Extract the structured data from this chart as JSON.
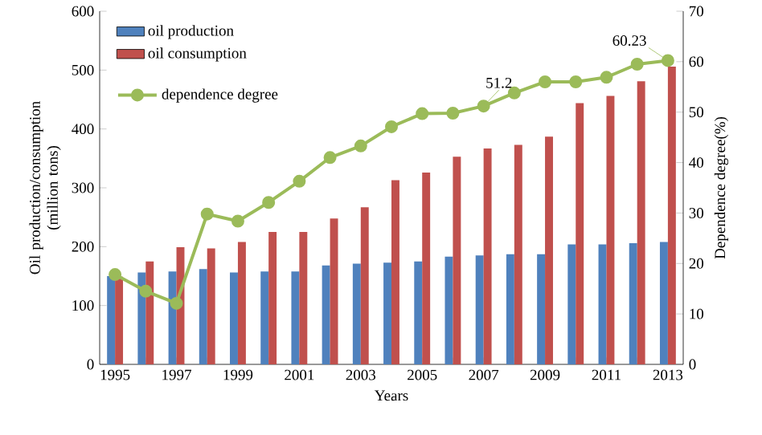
{
  "chart_data": {
    "type": "bar",
    "xlabel": "Years",
    "ylabel": "Oil production/consumption (million tons)",
    "y2label": "Dependence degree(%)",
    "categories": [
      "1995",
      null,
      "1997",
      null,
      "1999",
      null,
      "2001",
      null,
      "2003",
      null,
      "2005",
      null,
      "2007",
      null,
      "2009",
      null,
      "2011",
      null,
      "2013"
    ],
    "series": [
      {
        "name": "oil production",
        "color": "#4f81bd",
        "values": [
          150,
          156,
          158,
          162,
          156,
          158,
          158,
          168,
          171,
          173,
          175,
          183,
          185,
          187,
          187,
          204,
          204,
          206,
          208
        ]
      },
      {
        "name": "oil consumption",
        "color": "#c0504d",
        "values": [
          149,
          175,
          199,
          197,
          208,
          225,
          225,
          248,
          267,
          313,
          326,
          353,
          367,
          373,
          387,
          444,
          456,
          481,
          506
        ]
      },
      {
        "name": "dependence degree",
        "type": "line",
        "axis": "y2",
        "color": "#9bbb59",
        "marker": "circle",
        "values": [
          17.8,
          14.5,
          12.1,
          29.8,
          28.4,
          32.1,
          36.3,
          41.0,
          43.3,
          47.1,
          49.7,
          49.8,
          51.2,
          53.8,
          56.0,
          56.0,
          56.9,
          59.5,
          60.23
        ],
        "value_labels": [
          null,
          null,
          null,
          null,
          null,
          null,
          null,
          null,
          null,
          null,
          null,
          null,
          "51.2",
          null,
          null,
          null,
          null,
          null,
          "60.23"
        ]
      }
    ],
    "ylim": [
      0,
      600
    ],
    "yticks": [
      0,
      100,
      200,
      300,
      400,
      500,
      600
    ],
    "y2lim": [
      0,
      70
    ],
    "y2ticks": [
      0,
      10,
      20,
      30,
      40,
      50,
      60,
      70
    ],
    "legend": "top left"
  }
}
